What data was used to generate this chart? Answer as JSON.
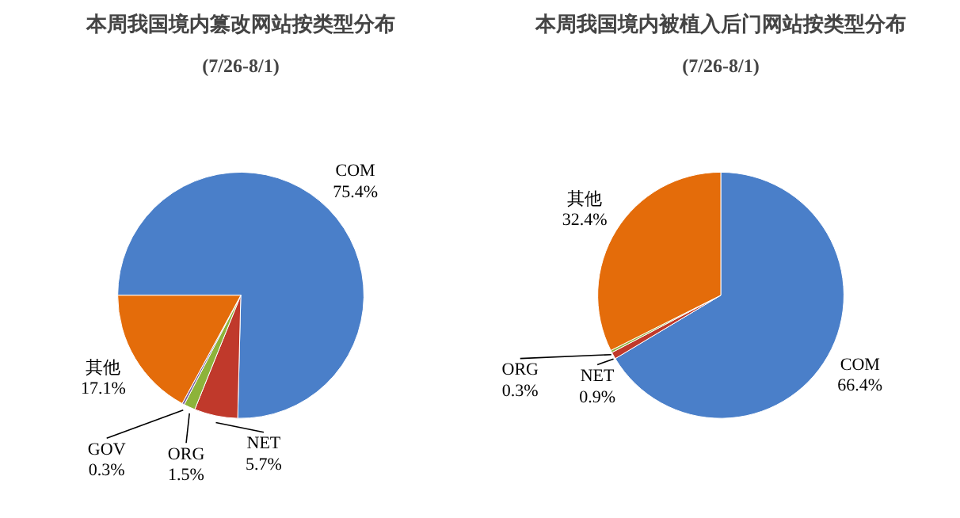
{
  "chart_data": [
    {
      "type": "pie",
      "title": "本周我国境内篡改网站按类型分布",
      "subtitle": "(7/26-8/1)",
      "categories": [
        "COM",
        "NET",
        "ORG",
        "GOV",
        "其他"
      ],
      "values": [
        75.4,
        5.7,
        1.5,
        0.3,
        17.1
      ],
      "value_labels": [
        "75.4%",
        "5.7%",
        "1.5%",
        "0.3%",
        "17.1%"
      ],
      "colors": [
        "#4a7fc9",
        "#c0392b",
        "#8db33a",
        "#7a5fa0",
        "#e46c0a"
      ]
    },
    {
      "type": "pie",
      "title": "本周我国境内被植入后门网站按类型分布",
      "subtitle": "(7/26-8/1)",
      "categories": [
        "COM",
        "NET",
        "ORG",
        "其他"
      ],
      "values": [
        66.4,
        0.9,
        0.3,
        32.4
      ],
      "value_labels": [
        "66.4%",
        "0.9%",
        "0.3%",
        "32.4%"
      ],
      "colors": [
        "#4a7fc9",
        "#c0392b",
        "#8db33a",
        "#e46c0a"
      ]
    }
  ]
}
